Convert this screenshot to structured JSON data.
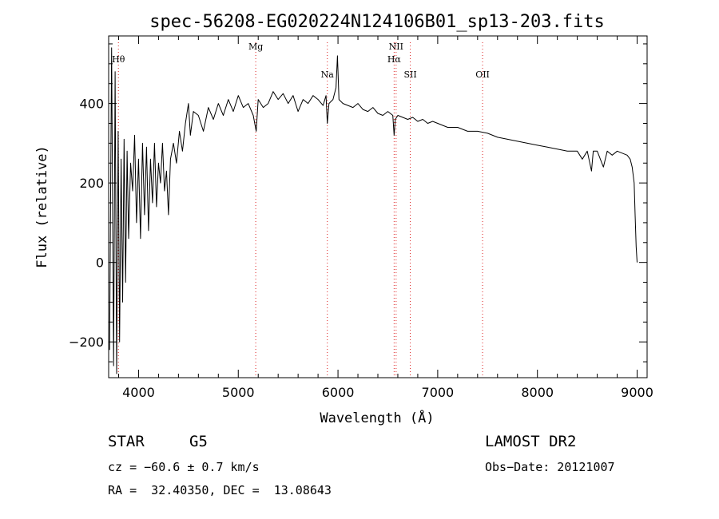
{
  "chart_data": {
    "type": "line",
    "title": "spec-56208-EG020224N124106B01_sp13-203.fits",
    "xlabel": "Wavelength (Å)",
    "ylabel": "Flux (relative)",
    "xlim": [
      3700,
      9100
    ],
    "ylim": [
      -290,
      570
    ],
    "x_ticks": [
      4000,
      5000,
      6000,
      7000,
      8000,
      9000
    ],
    "x_tick_labels": [
      "4000",
      "5000",
      "6000",
      "7000",
      "8000",
      "9000"
    ],
    "y_ticks": [
      -200,
      0,
      200,
      400
    ],
    "y_tick_labels": [
      "−200",
      "0",
      "200",
      "400"
    ],
    "grid": false,
    "spectral_lines": [
      {
        "label": "Hθ",
        "wavelength": 3798,
        "level": 1
      },
      {
        "label": "Mg",
        "wavelength": 5175,
        "level": 0
      },
      {
        "label": "Na",
        "wavelength": 5893,
        "level": 2
      },
      {
        "label": "NII",
        "wavelength": 6583,
        "level": 0
      },
      {
        "label": "Hα",
        "wavelength": 6563,
        "level": 1
      },
      {
        "label": "SII",
        "wavelength": 6725,
        "level": 2
      },
      {
        "label": "OII",
        "wavelength": 7450,
        "level": 2
      }
    ],
    "series": [
      {
        "x": [
          3710,
          3730,
          3750,
          3765,
          3780,
          3795,
          3810,
          3825,
          3840,
          3855,
          3870,
          3885,
          3900,
          3920,
          3940,
          3960,
          3980,
          4000,
          4020,
          4040,
          4060,
          4080,
          4100,
          4120,
          4140,
          4160,
          4180,
          4200,
          4220,
          4240,
          4260,
          4280,
          4300,
          4320,
          4350,
          4380,
          4410,
          4440,
          4470,
          4500,
          4520,
          4550,
          4600,
          4650,
          4700,
          4750,
          4800,
          4850,
          4900,
          4950,
          5000,
          5050,
          5100,
          5150,
          5180,
          5200,
          5250,
          5300,
          5350,
          5400,
          5450,
          5500,
          5550,
          5600,
          5650,
          5700,
          5750,
          5800,
          5850,
          5880,
          5893,
          5910,
          5950,
          5980,
          5995,
          6010,
          6050,
          6100,
          6150,
          6200,
          6250,
          6300,
          6350,
          6400,
          6450,
          6500,
          6550,
          6563,
          6575,
          6600,
          6650,
          6700,
          6750,
          6800,
          6850,
          6900,
          6950,
          7000,
          7100,
          7200,
          7300,
          7400,
          7500,
          7600,
          7700,
          7800,
          7900,
          8000,
          8100,
          8200,
          8300,
          8400,
          8450,
          8500,
          8542,
          8560,
          8600,
          8662,
          8700,
          8750,
          8800,
          8850,
          8900,
          8930,
          8950,
          8970,
          8980,
          8990,
          9000
        ],
        "y": [
          -220,
          540,
          -260,
          480,
          -280,
          330,
          -200,
          260,
          -100,
          310,
          -50,
          280,
          60,
          250,
          180,
          320,
          100,
          260,
          60,
          300,
          120,
          290,
          80,
          260,
          150,
          300,
          140,
          250,
          200,
          300,
          180,
          230,
          120,
          260,
          300,
          250,
          330,
          280,
          350,
          400,
          320,
          380,
          370,
          330,
          390,
          360,
          400,
          370,
          410,
          380,
          420,
          390,
          400,
          370,
          330,
          410,
          390,
          400,
          430,
          410,
          425,
          400,
          420,
          380,
          410,
          400,
          420,
          410,
          395,
          420,
          350,
          400,
          410,
          440,
          520,
          410,
          400,
          395,
          390,
          400,
          385,
          380,
          390,
          375,
          370,
          380,
          370,
          320,
          360,
          370,
          365,
          360,
          365,
          355,
          360,
          350,
          355,
          350,
          340,
          340,
          330,
          330,
          325,
          315,
          310,
          305,
          300,
          295,
          290,
          285,
          280,
          280,
          260,
          280,
          230,
          280,
          280,
          240,
          280,
          270,
          280,
          275,
          270,
          260,
          240,
          200,
          120,
          40,
          0
        ]
      }
    ]
  },
  "info": {
    "object_type": "STAR",
    "subclass": "G5",
    "survey": "LAMOST DR2",
    "redshift": "cz = −60.6 ± 0.7 km/s",
    "obs_date": "Obs−Date: 20121007",
    "coords": "RA =  32.40350, DEC =  13.08643"
  }
}
